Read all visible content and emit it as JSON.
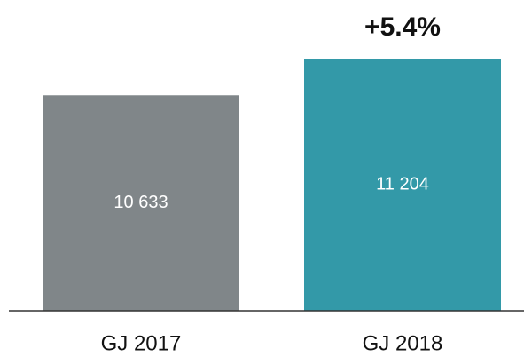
{
  "chart_data": {
    "type": "bar",
    "annotation": "+5.4%",
    "categories": [
      "GJ 2017",
      "GJ 2018"
    ],
    "values": [
      10633,
      11204
    ],
    "value_labels": [
      "10 633",
      "11 204"
    ],
    "colors": [
      "#808689",
      "#3399a8"
    ],
    "ylim": [
      7250,
      12100
    ]
  }
}
